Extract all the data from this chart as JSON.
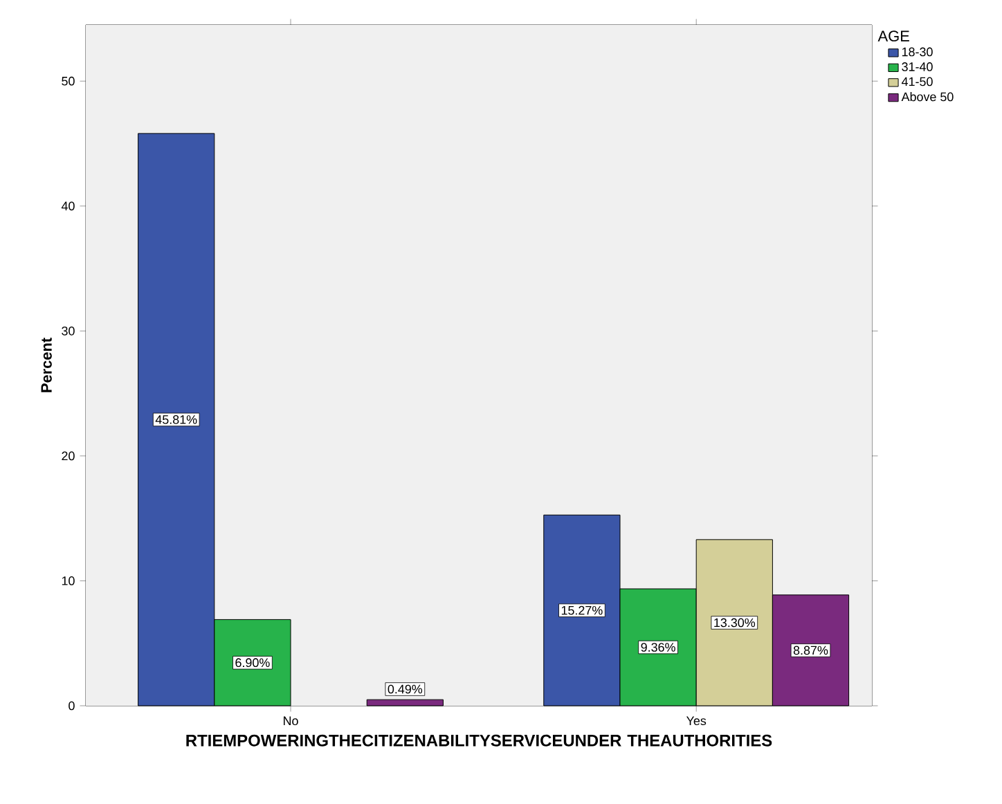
{
  "chart_data": {
    "type": "bar",
    "xlabel": "RTIEMPOWERINGTHECITIZENABILITYSERVICEUNDER THEAUTHORITIES",
    "ylabel": "Percent",
    "legend_title": "AGE",
    "categories": [
      "No",
      "Yes"
    ],
    "series": [
      {
        "name": "18-30",
        "color": "#3b56a8",
        "values": [
          45.81,
          15.27
        ],
        "value_labels": [
          "45.81%",
          "15.27%"
        ]
      },
      {
        "name": "31-40",
        "color": "#27b34b",
        "values": [
          6.9,
          9.36
        ],
        "value_labels": [
          "6.90%",
          "9.36%"
        ]
      },
      {
        "name": "41-50",
        "color": "#d4cf98",
        "values": [
          null,
          13.3
        ],
        "value_labels": [
          null,
          "13.30%"
        ]
      },
      {
        "name": "Above 50",
        "color": "#7a2a7e",
        "values": [
          0.49,
          8.87
        ],
        "value_labels": [
          "0.49%",
          "8.87%"
        ]
      }
    ],
    "ylim": [
      0,
      54.5
    ],
    "yticks": [
      0,
      10,
      20,
      30,
      40,
      50
    ],
    "legend": "top right",
    "grid": false
  }
}
